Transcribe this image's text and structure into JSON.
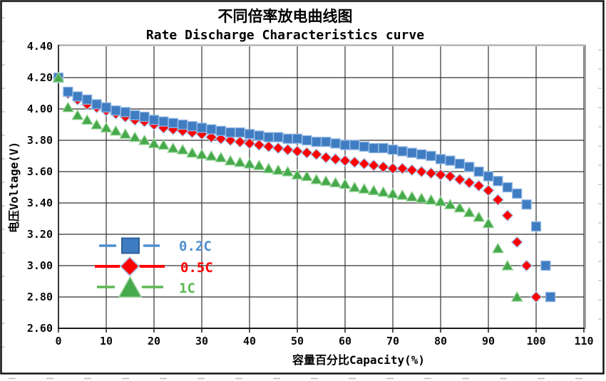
{
  "window": {
    "background": "#ffffff",
    "frame_color": "#141414"
  },
  "chart_data": {
    "type": "scatter",
    "title": "不同倍率放电曲线图",
    "subtitle": "Rate Discharge Characteristics curve",
    "xlabel": "容量百分比Capacity(%)",
    "ylabel": "电压Voltage(V)",
    "xlim": [
      0,
      110
    ],
    "ylim": [
      2.6,
      4.4
    ],
    "xtick_step": 10,
    "ytick_step": 0.2,
    "grid": true,
    "grid_color": "#333333",
    "plot_border_color": "#a3a3a3",
    "legend_position": "inside-lower-left",
    "series": [
      {
        "name": "0.2C",
        "marker": "square",
        "fill": "#3f7cc1",
        "edge": "#8fb6e4",
        "label_color": "#4e8fd2",
        "legend_edge": "#2e5f9e",
        "points": [
          [
            0,
            4.2
          ],
          [
            2,
            4.11
          ],
          [
            4,
            4.08
          ],
          [
            6,
            4.06
          ],
          [
            8,
            4.03
          ],
          [
            10,
            4.01
          ],
          [
            12,
            3.99
          ],
          [
            14,
            3.98
          ],
          [
            16,
            3.96
          ],
          [
            18,
            3.95
          ],
          [
            20,
            3.93
          ],
          [
            22,
            3.92
          ],
          [
            24,
            3.91
          ],
          [
            26,
            3.9
          ],
          [
            28,
            3.89
          ],
          [
            30,
            3.88
          ],
          [
            32,
            3.87
          ],
          [
            34,
            3.86
          ],
          [
            36,
            3.85
          ],
          [
            38,
            3.85
          ],
          [
            40,
            3.84
          ],
          [
            42,
            3.83
          ],
          [
            44,
            3.82
          ],
          [
            46,
            3.82
          ],
          [
            48,
            3.81
          ],
          [
            50,
            3.81
          ],
          [
            52,
            3.8
          ],
          [
            54,
            3.79
          ],
          [
            56,
            3.79
          ],
          [
            58,
            3.78
          ],
          [
            60,
            3.77
          ],
          [
            62,
            3.77
          ],
          [
            64,
            3.76
          ],
          [
            66,
            3.75
          ],
          [
            68,
            3.75
          ],
          [
            70,
            3.74
          ],
          [
            72,
            3.73
          ],
          [
            74,
            3.72
          ],
          [
            76,
            3.71
          ],
          [
            78,
            3.7
          ],
          [
            80,
            3.68
          ],
          [
            82,
            3.67
          ],
          [
            84,
            3.65
          ],
          [
            86,
            3.63
          ],
          [
            88,
            3.6
          ],
          [
            90,
            3.57
          ],
          [
            92,
            3.54
          ],
          [
            94,
            3.5
          ],
          [
            96,
            3.46
          ],
          [
            98,
            3.39
          ],
          [
            100,
            3.25
          ],
          [
            102,
            3.0
          ],
          [
            103,
            2.8
          ]
        ]
      },
      {
        "name": "0.5C",
        "marker": "diamond",
        "fill": "#fe0000",
        "edge": "#a6c4e8",
        "label_color": "#fe0000",
        "legend_edge": "#a6c4e8",
        "points": [
          [
            0,
            4.2
          ],
          [
            2,
            4.1
          ],
          [
            4,
            4.06
          ],
          [
            6,
            4.03
          ],
          [
            8,
            4.01
          ],
          [
            10,
            3.99
          ],
          [
            12,
            3.97
          ],
          [
            14,
            3.95
          ],
          [
            16,
            3.93
          ],
          [
            18,
            3.92
          ],
          [
            20,
            3.9
          ],
          [
            22,
            3.88
          ],
          [
            24,
            3.87
          ],
          [
            26,
            3.86
          ],
          [
            28,
            3.85
          ],
          [
            30,
            3.84
          ],
          [
            32,
            3.82
          ],
          [
            34,
            3.81
          ],
          [
            36,
            3.8
          ],
          [
            38,
            3.79
          ],
          [
            40,
            3.78
          ],
          [
            42,
            3.77
          ],
          [
            44,
            3.76
          ],
          [
            46,
            3.75
          ],
          [
            48,
            3.74
          ],
          [
            50,
            3.73
          ],
          [
            52,
            3.72
          ],
          [
            54,
            3.71
          ],
          [
            56,
            3.69
          ],
          [
            58,
            3.68
          ],
          [
            60,
            3.67
          ],
          [
            62,
            3.66
          ],
          [
            64,
            3.65
          ],
          [
            66,
            3.64
          ],
          [
            68,
            3.63
          ],
          [
            70,
            3.62
          ],
          [
            72,
            3.62
          ],
          [
            74,
            3.61
          ],
          [
            76,
            3.6
          ],
          [
            78,
            3.59
          ],
          [
            80,
            3.58
          ],
          [
            82,
            3.57
          ],
          [
            84,
            3.55
          ],
          [
            86,
            3.53
          ],
          [
            88,
            3.51
          ],
          [
            90,
            3.48
          ],
          [
            92,
            3.42
          ],
          [
            94,
            3.32
          ],
          [
            96,
            3.15
          ],
          [
            98,
            3.0
          ],
          [
            100,
            2.8
          ]
        ]
      },
      {
        "name": "1C",
        "marker": "triangle",
        "fill": "#46a94b",
        "edge": "#93d393",
        "label_color": "#5cb854",
        "legend_edge": "#8fce8f",
        "points": [
          [
            0,
            4.2
          ],
          [
            2,
            4.01
          ],
          [
            4,
            3.96
          ],
          [
            6,
            3.93
          ],
          [
            8,
            3.9
          ],
          [
            10,
            3.88
          ],
          [
            12,
            3.86
          ],
          [
            14,
            3.84
          ],
          [
            16,
            3.82
          ],
          [
            18,
            3.8
          ],
          [
            20,
            3.78
          ],
          [
            22,
            3.77
          ],
          [
            24,
            3.75
          ],
          [
            26,
            3.74
          ],
          [
            28,
            3.72
          ],
          [
            30,
            3.71
          ],
          [
            32,
            3.7
          ],
          [
            34,
            3.69
          ],
          [
            36,
            3.67
          ],
          [
            38,
            3.66
          ],
          [
            40,
            3.65
          ],
          [
            42,
            3.64
          ],
          [
            44,
            3.62
          ],
          [
            46,
            3.61
          ],
          [
            48,
            3.6
          ],
          [
            50,
            3.58
          ],
          [
            52,
            3.57
          ],
          [
            54,
            3.55
          ],
          [
            56,
            3.54
          ],
          [
            58,
            3.53
          ],
          [
            60,
            3.52
          ],
          [
            62,
            3.5
          ],
          [
            64,
            3.49
          ],
          [
            66,
            3.48
          ],
          [
            68,
            3.47
          ],
          [
            70,
            3.46
          ],
          [
            72,
            3.45
          ],
          [
            74,
            3.44
          ],
          [
            76,
            3.43
          ],
          [
            78,
            3.42
          ],
          [
            80,
            3.41
          ],
          [
            82,
            3.39
          ],
          [
            84,
            3.37
          ],
          [
            86,
            3.34
          ],
          [
            88,
            3.31
          ],
          [
            90,
            3.27
          ],
          [
            92,
            3.11
          ],
          [
            94,
            3.0
          ],
          [
            96,
            2.8
          ]
        ]
      }
    ]
  },
  "axes": {
    "x_ticks": [
      0,
      10,
      20,
      30,
      40,
      50,
      60,
      70,
      80,
      90,
      100,
      110
    ],
    "y_ticks": [
      "4.40",
      "4.20",
      "4.00",
      "3.80",
      "3.60",
      "3.40",
      "3.20",
      "3.00",
      "2.80",
      "2.60"
    ]
  }
}
